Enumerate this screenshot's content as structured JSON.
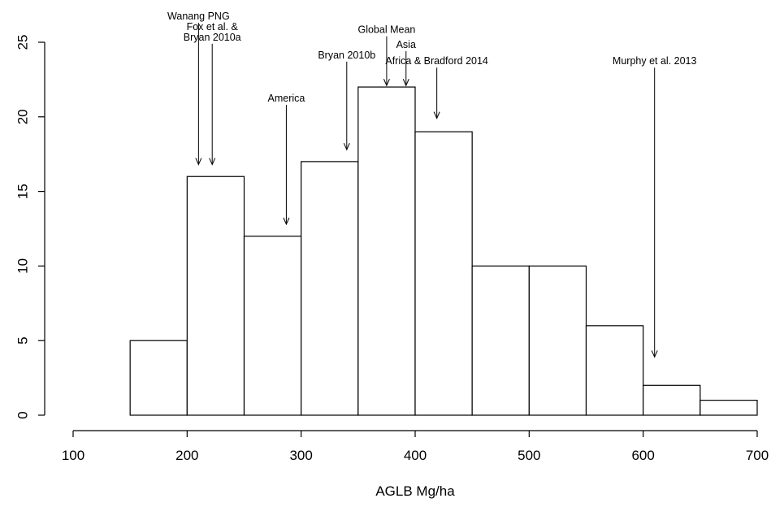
{
  "chart_data": {
    "type": "bar",
    "title": "",
    "xlabel": "AGLB Mg/ha",
    "ylabel": "",
    "xlim": [
      100,
      700
    ],
    "ylim": [
      0,
      25
    ],
    "x_ticks": [
      "100",
      "200",
      "300",
      "400",
      "500",
      "600",
      "700"
    ],
    "y_ticks": [
      "0",
      "5",
      "10",
      "15",
      "20",
      "25"
    ],
    "bins": [
      {
        "from": 150,
        "to": 200,
        "count": 5
      },
      {
        "from": 200,
        "to": 250,
        "count": 16
      },
      {
        "from": 250,
        "to": 300,
        "count": 12
      },
      {
        "from": 300,
        "to": 350,
        "count": 17
      },
      {
        "from": 350,
        "to": 400,
        "count": 22
      },
      {
        "from": 400,
        "to": 450,
        "count": 19
      },
      {
        "from": 450,
        "to": 500,
        "count": 10
      },
      {
        "from": 500,
        "to": 550,
        "count": 10
      },
      {
        "from": 550,
        "to": 600,
        "count": 6
      },
      {
        "from": 600,
        "to": 650,
        "count": 2
      },
      {
        "from": 650,
        "to": 700,
        "count": 1
      }
    ],
    "annotations": [
      {
        "lines": [
          "Wanang PNG"
        ],
        "x": 210,
        "y_tip": 16.8,
        "y_top": 26.3
      },
      {
        "lines": [
          "Fox et al. &",
          "Bryan 2010a"
        ],
        "x": 222,
        "y_tip": 16.8,
        "y_top": 24.9
      },
      {
        "lines": [
          "America"
        ],
        "x": 287,
        "y_tip": 12.8,
        "y_top": 20.8
      },
      {
        "lines": [
          "Bryan 2010b"
        ],
        "x": 340,
        "y_tip": 17.8,
        "y_top": 23.7
      },
      {
        "lines": [
          "Global Mean"
        ],
        "x": 375,
        "y_tip": 22.1,
        "y_top": 25.4
      },
      {
        "lines": [
          "Asia"
        ],
        "x": 392,
        "y_tip": 22.1,
        "y_top": 24.4
      },
      {
        "lines": [
          "Africa & Bradford 2014"
        ],
        "x": 419,
        "y_tip": 19.9,
        "y_top": 23.3
      },
      {
        "lines": [
          "Murphy et al. 2013"
        ],
        "x": 610,
        "y_tip": 3.9,
        "y_top": 23.3
      }
    ]
  }
}
